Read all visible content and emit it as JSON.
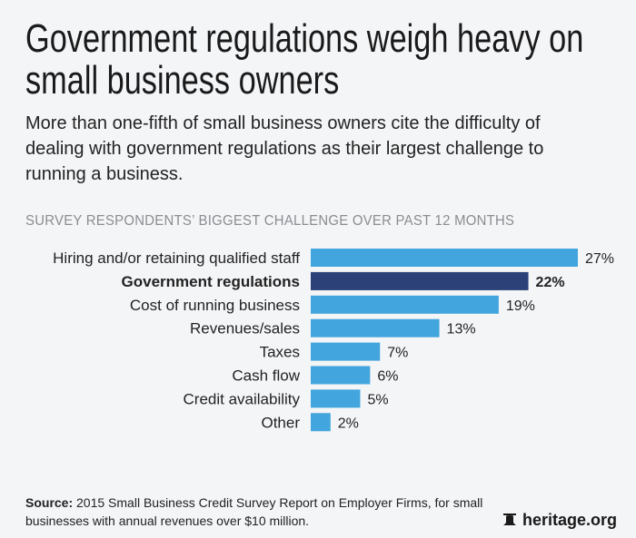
{
  "title": [
    "Government regulations weigh heavy on",
    "small business owners"
  ],
  "subtitle": "More than one-fifth of small business owners cite the difficulty of dealing with government regulations as their largest challenge to running a business.",
  "chart_data": {
    "type": "bar",
    "orientation": "horizontal",
    "title": "SURVEY RESPONDENTS’ BIGGEST CHALLENGE OVER PAST 12 MONTHS",
    "categories": [
      "Hiring and/or retaining qualified staff",
      "Government regulations",
      "Cost of running business",
      "Revenues/sales",
      "Taxes",
      "Cash flow",
      "Credit availability",
      "Other"
    ],
    "values": [
      27,
      22,
      19,
      13,
      7,
      6,
      5,
      2
    ],
    "labels": [
      "27%",
      "22%",
      "19%",
      "13%",
      "7%",
      "6%",
      "5%",
      "2%"
    ],
    "highlight_index": 1,
    "unit": "%",
    "xlim": [
      0,
      27
    ],
    "grid": false,
    "colors": {
      "default": "#42a5dd",
      "highlight": "#2b4177"
    }
  },
  "source": {
    "label": "Source:",
    "text": " 2015 Small Business Credit Survey Report on Employer Firms, for small businesses with annual revenues over $10 million."
  },
  "logo": {
    "text": "heritage.org",
    "icon": "liberty-bell-icon"
  }
}
